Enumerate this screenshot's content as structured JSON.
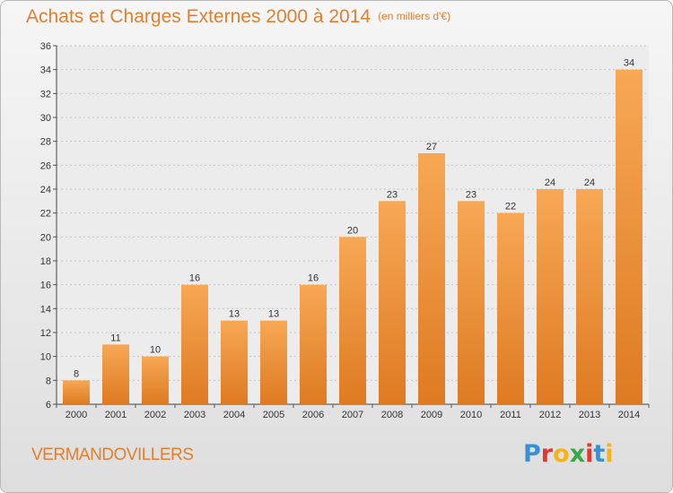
{
  "header": {
    "title": "Achats et Charges Externes 2000 à 2014",
    "unit": "(en milliers d'€)"
  },
  "footer": {
    "location": "VERMANDOVILLERS",
    "brand_letters": [
      {
        "char": "P",
        "color": "#3a8fd0"
      },
      {
        "char": "r",
        "color": "#e2382f"
      },
      {
        "char": "o",
        "color": "#f5b21c"
      },
      {
        "char": "x",
        "color": "#3aa84a"
      },
      {
        "char": "i",
        "color": "#e2382f"
      },
      {
        "char": "t",
        "color": "#3a8fd0"
      },
      {
        "char": "i",
        "color": "#f5b21c"
      }
    ]
  },
  "colors": {
    "bar_light": "#f7a855",
    "bar_dark": "#de7a22",
    "accent": "#e08030"
  },
  "chart_data": {
    "type": "bar",
    "title": "Achats et Charges Externes 2000 à 2014",
    "subtitle": "(en milliers d'€)",
    "xlabel": "",
    "ylabel": "",
    "categories": [
      "2000",
      "2001",
      "2002",
      "2003",
      "2004",
      "2005",
      "2006",
      "2007",
      "2008",
      "2009",
      "2010",
      "2011",
      "2012",
      "2013",
      "2014"
    ],
    "values": [
      8,
      11,
      10,
      16,
      13,
      13,
      16,
      20,
      23,
      27,
      23,
      22,
      24,
      24,
      34
    ],
    "ylim": [
      6,
      36
    ],
    "yticks": [
      6,
      8,
      10,
      12,
      14,
      16,
      18,
      20,
      22,
      24,
      26,
      28,
      30,
      32,
      34,
      36
    ],
    "grid": "horizontal-dotted",
    "legend": "none"
  }
}
